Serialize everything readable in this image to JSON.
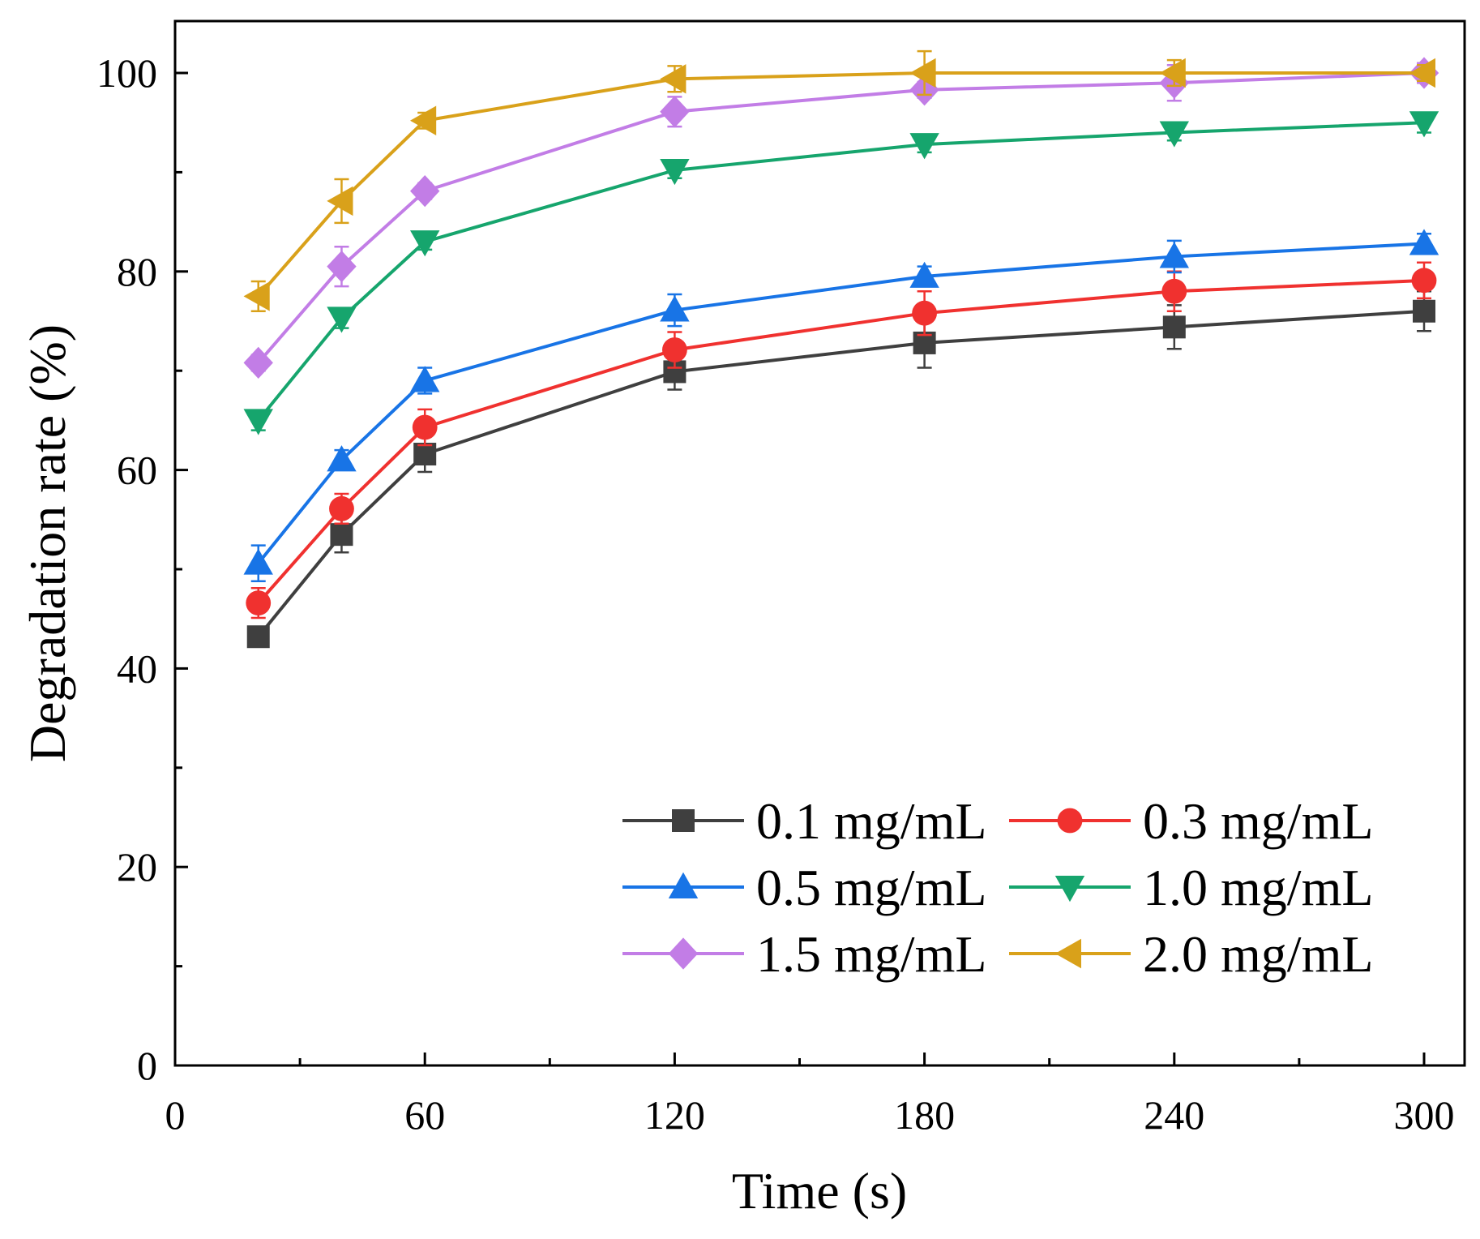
{
  "chart_data": {
    "type": "line",
    "title": "",
    "xlabel": "Time (s)",
    "ylabel": "Degradation rate (%)",
    "xlim": [
      0,
      310
    ],
    "ylim": [
      0,
      105
    ],
    "xticks": [
      0,
      60,
      120,
      180,
      240,
      300
    ],
    "yticks": [
      0,
      20,
      40,
      60,
      80,
      100
    ],
    "x_minor": [
      30,
      90,
      150,
      210,
      270
    ],
    "y_minor": [
      10,
      30,
      50,
      70,
      90
    ],
    "grid": false,
    "legend_position": "bottom-right",
    "x": [
      20,
      40,
      60,
      120,
      180,
      240,
      300
    ],
    "series": [
      {
        "name": "0.1 mg/mL",
        "color": "#3f3f3f",
        "marker": "square",
        "values": [
          43.2,
          53.5,
          61.6,
          69.9,
          72.8,
          74.4,
          76.0
        ],
        "errors": [
          1.0,
          1.8,
          1.8,
          1.8,
          2.5,
          2.2,
          2.0
        ]
      },
      {
        "name": "0.3 mg/mL",
        "color": "#f0312f",
        "marker": "circle",
        "values": [
          46.6,
          56.1,
          64.3,
          72.1,
          75.8,
          78.0,
          79.1
        ],
        "errors": [
          1.5,
          1.5,
          1.8,
          1.8,
          2.2,
          2.0,
          1.8
        ]
      },
      {
        "name": "0.5 mg/mL",
        "color": "#1874e6",
        "marker": "triangle-up",
        "values": [
          50.6,
          61.0,
          69.0,
          76.1,
          79.5,
          81.5,
          82.8
        ],
        "errors": [
          1.8,
          1.0,
          1.3,
          1.6,
          1.0,
          1.6,
          1.0
        ]
      },
      {
        "name": "1.0 mg/mL",
        "color": "#16a56d",
        "marker": "triangle-down",
        "values": [
          65.0,
          75.3,
          83.0,
          90.2,
          92.8,
          94.0,
          95.0
        ],
        "errors": [
          1.0,
          1.0,
          0.8,
          0.8,
          0.8,
          0.8,
          1.0
        ]
      },
      {
        "name": "1.5 mg/mL",
        "color": "#c27de6",
        "marker": "diamond",
        "values": [
          70.8,
          80.5,
          88.1,
          96.1,
          98.3,
          99.0,
          100.0
        ],
        "errors": [
          0.8,
          2.0,
          0.8,
          1.5,
          0.8,
          1.8,
          1.0
        ]
      },
      {
        "name": "2.0 mg/mL",
        "color": "#d9a11a",
        "marker": "triangle-left",
        "values": [
          77.5,
          87.1,
          95.2,
          99.4,
          100.0,
          100.0,
          100.0
        ],
        "errors": [
          1.5,
          2.2,
          0.8,
          1.3,
          2.2,
          1.3,
          0.8
        ]
      }
    ]
  }
}
